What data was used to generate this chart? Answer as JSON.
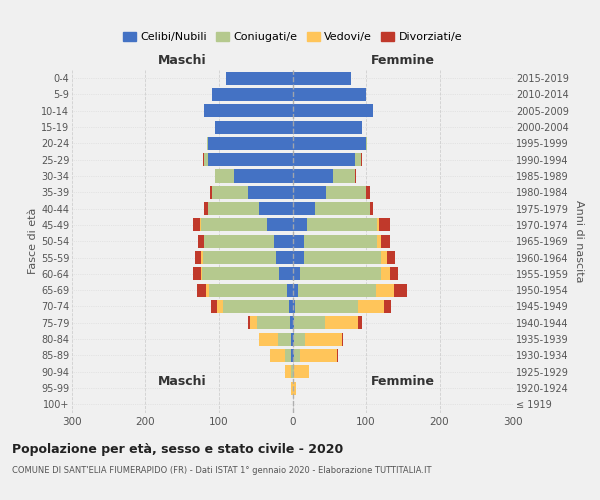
{
  "age_groups": [
    "100+",
    "95-99",
    "90-94",
    "85-89",
    "80-84",
    "75-79",
    "70-74",
    "65-69",
    "60-64",
    "55-59",
    "50-54",
    "45-49",
    "40-44",
    "35-39",
    "30-34",
    "25-29",
    "20-24",
    "15-19",
    "10-14",
    "5-9",
    "0-4"
  ],
  "birth_years": [
    "≤ 1919",
    "1920-1924",
    "1925-1929",
    "1930-1934",
    "1935-1939",
    "1940-1944",
    "1945-1949",
    "1950-1954",
    "1955-1959",
    "1960-1964",
    "1965-1969",
    "1970-1974",
    "1975-1979",
    "1980-1984",
    "1985-1989",
    "1990-1994",
    "1995-1999",
    "2000-2004",
    "2005-2009",
    "2010-2014",
    "2015-2019"
  ],
  "maschi": {
    "celibi": [
      0,
      0,
      0,
      2,
      2,
      3,
      5,
      8,
      18,
      22,
      25,
      35,
      45,
      60,
      80,
      115,
      115,
      105,
      120,
      110,
      90
    ],
    "coniugati": [
      0,
      0,
      2,
      8,
      18,
      45,
      90,
      105,
      105,
      100,
      95,
      90,
      70,
      50,
      25,
      5,
      1,
      0,
      0,
      0,
      0
    ],
    "vedovi": [
      0,
      2,
      8,
      20,
      25,
      10,
      8,
      5,
      2,
      2,
      1,
      1,
      0,
      0,
      0,
      0,
      0,
      0,
      0,
      0,
      0
    ],
    "divorziati": [
      0,
      0,
      0,
      0,
      0,
      2,
      8,
      12,
      10,
      8,
      8,
      10,
      5,
      2,
      1,
      2,
      0,
      0,
      0,
      0,
      0
    ]
  },
  "femmine": {
    "nubili": [
      0,
      0,
      0,
      2,
      2,
      2,
      4,
      8,
      10,
      15,
      15,
      20,
      30,
      45,
      55,
      85,
      100,
      95,
      110,
      100,
      80
    ],
    "coniugate": [
      0,
      0,
      2,
      8,
      15,
      42,
      85,
      105,
      110,
      105,
      100,
      95,
      75,
      55,
      30,
      8,
      2,
      0,
      0,
      0,
      0
    ],
    "vedove": [
      1,
      5,
      20,
      50,
      50,
      45,
      35,
      25,
      12,
      8,
      5,
      3,
      0,
      0,
      0,
      0,
      0,
      0,
      0,
      0,
      0
    ],
    "divorziate": [
      0,
      0,
      0,
      2,
      2,
      5,
      10,
      18,
      12,
      12,
      12,
      15,
      5,
      5,
      2,
      2,
      0,
      0,
      0,
      0,
      0
    ]
  },
  "colors": {
    "celibi": "#4472c4",
    "coniugati": "#b5c98e",
    "vedovi": "#ffc55a",
    "divorziati": "#c0392b"
  },
  "xlim": 300,
  "title": "Popolazione per età, sesso e stato civile - 2020",
  "subtitle": "COMUNE DI SANT'ELIA FIUMERAPIDO (FR) - Dati ISTAT 1° gennaio 2020 - Elaborazione TUTTITALIA.IT",
  "ylabel_left": "Fasce di età",
  "ylabel_right": "Anni di nascita",
  "xlabel_left": "Maschi",
  "xlabel_right": "Femmine",
  "background_color": "#f0f0f0",
  "grid_color": "#cccccc"
}
